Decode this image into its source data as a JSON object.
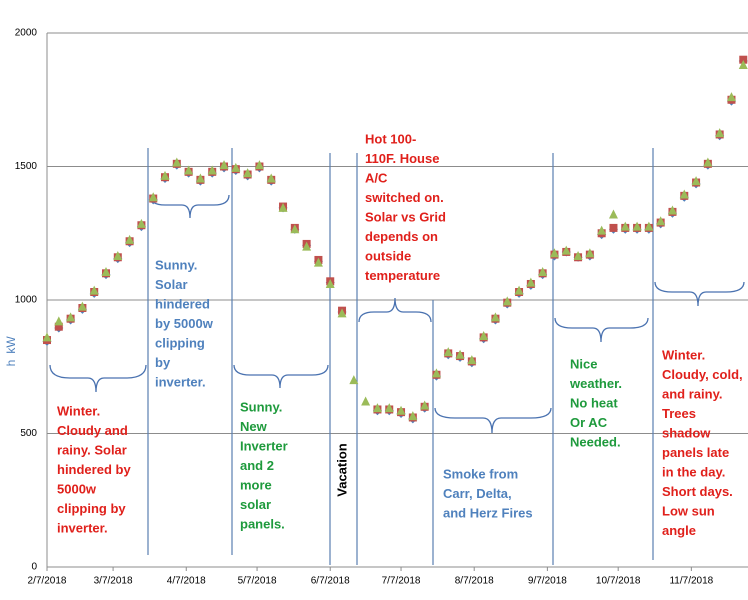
{
  "chart_data": {
    "type": "scatter",
    "y_label_lines": [
      "kW",
      "h"
    ],
    "x": [
      "2018-02-07",
      "2018-02-12",
      "2018-02-17",
      "2018-02-22",
      "2018-02-27",
      "2018-03-04",
      "2018-03-09",
      "2018-03-14",
      "2018-03-19",
      "2018-03-24",
      "2018-03-29",
      "2018-04-03",
      "2018-04-08",
      "2018-04-13",
      "2018-04-18",
      "2018-04-23",
      "2018-04-28",
      "2018-05-03",
      "2018-05-08",
      "2018-05-13",
      "2018-05-18",
      "2018-05-23",
      "2018-05-28",
      "2018-06-02",
      "2018-06-07",
      "2018-06-12",
      "2018-06-17",
      "2018-06-22",
      "2018-06-27",
      "2018-07-02",
      "2018-07-07",
      "2018-07-12",
      "2018-07-17",
      "2018-07-22",
      "2018-07-27",
      "2018-08-01",
      "2018-08-06",
      "2018-08-11",
      "2018-08-16",
      "2018-08-21",
      "2018-08-26",
      "2018-08-31",
      "2018-09-05",
      "2018-09-10",
      "2018-09-15",
      "2018-09-20",
      "2018-09-25",
      "2018-09-30",
      "2018-10-05",
      "2018-10-10",
      "2018-10-15",
      "2018-10-20",
      "2018-10-25",
      "2018-10-30",
      "2018-11-04",
      "2018-11-09",
      "2018-11-14",
      "2018-11-19",
      "2018-11-24",
      "2018-11-29"
    ],
    "series": [
      {
        "color": "#4f81bd",
        "marker": "diamond",
        "values": [
          845,
          895,
          925,
          965,
          1025,
          1095,
          1155,
          1215,
          1275,
          1375,
          1455,
          1505,
          1475,
          1445,
          1475,
          1495,
          1485,
          1465,
          1495,
          1445,
          1345,
          1265,
          1205,
          1145,
          1065,
          955,
          null,
          null,
          585,
          585,
          575,
          555,
          595,
          715,
          795,
          785,
          765,
          855,
          925,
          985,
          1025,
          1055,
          1095,
          1165,
          1180,
          1160,
          1165,
          1245,
          1265,
          1265,
          1265,
          1265,
          1285,
          1325,
          1385,
          1435,
          1505,
          1615,
          1745,
          1895
        ]
      },
      {
        "color": "#c0504d",
        "marker": "square",
        "values": [
          850,
          900,
          930,
          970,
          1030,
          1100,
          1160,
          1220,
          1280,
          1380,
          1460,
          1510,
          1480,
          1450,
          1480,
          1500,
          1490,
          1470,
          1500,
          1450,
          1350,
          1270,
          1210,
          1150,
          1070,
          960,
          null,
          null,
          590,
          590,
          580,
          560,
          600,
          720,
          800,
          790,
          770,
          860,
          930,
          990,
          1030,
          1060,
          1100,
          1170,
          1180,
          1160,
          1170,
          1250,
          1270,
          1270,
          1270,
          1270,
          1290,
          1330,
          1390,
          1440,
          1510,
          1620,
          1750,
          1900
        ]
      },
      {
        "color": "#9bbb59",
        "marker": "triangle",
        "values": [
          860,
          920,
          935,
          975,
          1035,
          1105,
          1165,
          1225,
          1285,
          1385,
          1465,
          1515,
          1485,
          1455,
          1485,
          1505,
          1495,
          1475,
          1505,
          1455,
          1345,
          1265,
          1200,
          1140,
          1060,
          950,
          700,
          620,
          595,
          595,
          585,
          565,
          605,
          725,
          805,
          795,
          775,
          865,
          935,
          995,
          1035,
          1065,
          1105,
          1175,
          1185,
          1165,
          1175,
          1260,
          1320,
          1275,
          1275,
          1275,
          1295,
          1335,
          1395,
          1445,
          1515,
          1625,
          1760,
          1880
        ]
      }
    ],
    "xlim": [
      "2018-02-07",
      "2018-12-01"
    ],
    "xticks": [
      {
        "value": "2018-02-07",
        "label": "2/7/2018"
      },
      {
        "value": "2018-03-07",
        "label": "3/7/2018"
      },
      {
        "value": "2018-04-07",
        "label": "4/7/2018"
      },
      {
        "value": "2018-05-07",
        "label": "5/7/2018"
      },
      {
        "value": "2018-06-07",
        "label": "6/7/2018"
      },
      {
        "value": "2018-07-07",
        "label": "7/7/2018"
      },
      {
        "value": "2018-08-07",
        "label": "8/7/2018"
      },
      {
        "value": "2018-09-07",
        "label": "9/7/2018"
      },
      {
        "value": "2018-10-07",
        "label": "10/7/2018"
      },
      {
        "value": "2018-11-07",
        "label": "11/7/2018"
      }
    ],
    "ylim": [
      0,
      2000
    ],
    "yticks": [
      0,
      500,
      1000,
      1500,
      2000
    ],
    "grid": true,
    "annotations": [
      {
        "color": "#e0201b",
        "lines": [
          "Winter.",
          "Cloudy and",
          "rainy. Solar",
          "hindered by",
          "5000w",
          "clipping by",
          "inverter."
        ]
      },
      {
        "color": "#4f81bd",
        "lines": [
          "Sunny.",
          "Solar",
          "hindered",
          "by 5000w",
          "clipping",
          "by",
          "inverter."
        ]
      },
      {
        "color": "#1e9a3c",
        "lines": [
          "Sunny.",
          "New",
          "Inverter",
          "and 2",
          "more",
          "solar",
          "panels."
        ]
      },
      {
        "color": "#000000",
        "lines": [
          "Vacation"
        ]
      },
      {
        "color": "#e0201b",
        "lines": [
          "Hot 100-",
          "110F. House",
          "A/C",
          "switched on.",
          "Solar vs Grid",
          "depends on",
          "outside",
          "temperature"
        ]
      },
      {
        "color": "#4f81bd",
        "lines": [
          "Smoke from",
          "Carr, Delta,",
          "and Herz Fires"
        ]
      },
      {
        "color": "#1e9a3c",
        "lines": [
          "Nice",
          "weather.",
          "No heat",
          "Or AC",
          "Needed."
        ]
      },
      {
        "color": "#e0201b",
        "lines": [
          "Winter.",
          "Cloudy, cold,",
          "and rainy.",
          "Trees",
          "shadow",
          "panels late",
          "in the day.",
          "Short days.",
          "Low sun",
          "angle"
        ]
      }
    ]
  }
}
